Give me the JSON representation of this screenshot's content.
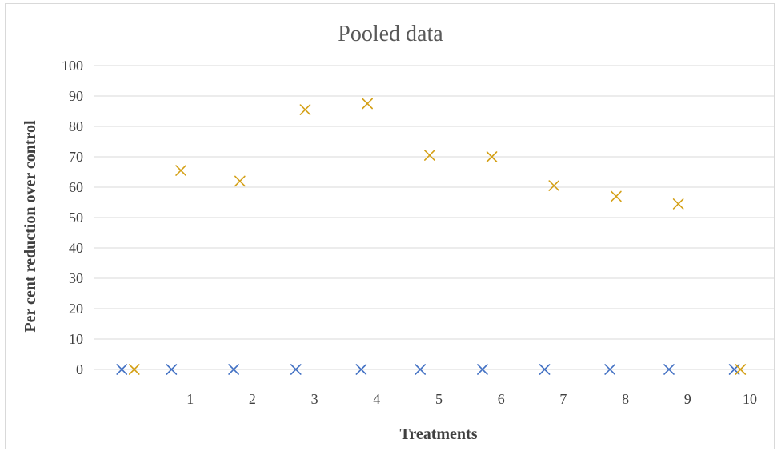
{
  "chart_data": {
    "type": "scatter",
    "title": "Pooled data",
    "xlabel": "Treatments",
    "ylabel": "Per cent reduction over control",
    "ylim": [
      0,
      100
    ],
    "yticks": [
      0,
      10,
      20,
      30,
      40,
      50,
      60,
      70,
      80,
      90,
      100
    ],
    "xticks": [
      1,
      2,
      3,
      4,
      5,
      6,
      7,
      8,
      9,
      10
    ],
    "grid": true,
    "legend": "none",
    "series": [
      {
        "color": "#4472c4",
        "marker": "x",
        "points": [
          {
            "x": -0.1,
            "y": 0
          },
          {
            "x": 0.7,
            "y": 0
          },
          {
            "x": 1.7,
            "y": 0
          },
          {
            "x": 2.7,
            "y": 0
          },
          {
            "x": 3.75,
            "y": 0
          },
          {
            "x": 4.7,
            "y": 0
          },
          {
            "x": 5.7,
            "y": 0
          },
          {
            "x": 6.7,
            "y": 0
          },
          {
            "x": 7.75,
            "y": 0
          },
          {
            "x": 8.7,
            "y": 0
          },
          {
            "x": 9.75,
            "y": 0
          }
        ]
      },
      {
        "color": "#d4a017",
        "marker": "x",
        "points": [
          {
            "x": 0.1,
            "y": 0
          },
          {
            "x": 0.85,
            "y": 65.5
          },
          {
            "x": 1.8,
            "y": 62
          },
          {
            "x": 2.85,
            "y": 85.5
          },
          {
            "x": 3.85,
            "y": 87.5
          },
          {
            "x": 4.85,
            "y": 70.5
          },
          {
            "x": 5.85,
            "y": 70
          },
          {
            "x": 6.85,
            "y": 60.5
          },
          {
            "x": 7.85,
            "y": 57
          },
          {
            "x": 8.85,
            "y": 54.5
          },
          {
            "x": 9.85,
            "y": 0
          }
        ]
      }
    ]
  }
}
